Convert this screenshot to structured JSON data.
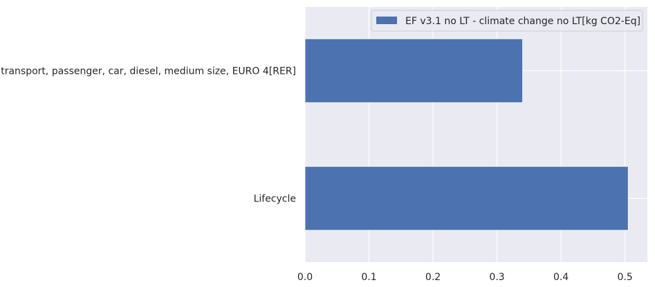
{
  "chart_data": {
    "type": "bar",
    "orientation": "horizontal",
    "categories": [
      "Lifecycle",
      "transport, passenger, car, diesel, medium size, EURO 4[RER]"
    ],
    "series": [
      {
        "name": "EF v3.1 no LT - climate change no LT[kg CO2-Eq]",
        "values": [
          0.505,
          0.34
        ]
      }
    ],
    "xlim": [
      0,
      0.535
    ],
    "xticks": [
      0.0,
      0.1,
      0.2,
      0.3,
      0.4,
      0.5
    ],
    "xtick_labels": [
      "0.0",
      "0.1",
      "0.2",
      "0.3",
      "0.4",
      "0.5"
    ],
    "grid": true,
    "legend_position": "top-right",
    "title": "",
    "xlabel": "",
    "ylabel": ""
  },
  "colors": {
    "background": "#eaeaf2",
    "bar": "#4c72b0",
    "grid": "#ffffff"
  }
}
